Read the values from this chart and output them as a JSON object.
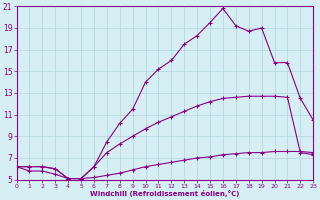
{
  "xlabel": "Windchill (Refroidissement éolien,°C)",
  "background_color": "#d6eff5",
  "grid_color": "#b0d4dc",
  "line_color": "#880088",
  "xlim": [
    0,
    23
  ],
  "ylim": [
    5,
    21
  ],
  "xticks": [
    0,
    1,
    2,
    3,
    4,
    5,
    6,
    7,
    8,
    9,
    10,
    11,
    12,
    13,
    14,
    15,
    16,
    17,
    18,
    19,
    20,
    21,
    22,
    23
  ],
  "yticks": [
    5,
    7,
    9,
    11,
    13,
    15,
    17,
    19,
    21
  ],
  "curve_upper_x": [
    0,
    1,
    2,
    3,
    4,
    5,
    6,
    7,
    8,
    9,
    10,
    11,
    12,
    13,
    14,
    15,
    16,
    17,
    18,
    19,
    20,
    21,
    22,
    23
  ],
  "curve_upper_y": [
    6.2,
    6.2,
    6.2,
    6.0,
    5.1,
    5.1,
    6.2,
    8.5,
    10.2,
    11.5,
    14.0,
    15.2,
    16.0,
    17.5,
    18.3,
    19.5,
    20.8,
    19.2,
    18.7,
    19.0,
    15.8,
    15.8,
    12.5,
    10.5
  ],
  "curve_mid_x": [
    0,
    1,
    2,
    3,
    4,
    5,
    6,
    7,
    8,
    9,
    10,
    11,
    12,
    13,
    14,
    15,
    16,
    17,
    18,
    19,
    20,
    21,
    22,
    23
  ],
  "curve_mid_y": [
    6.2,
    6.2,
    6.2,
    6.0,
    5.1,
    5.1,
    6.2,
    7.5,
    8.3,
    9.0,
    9.7,
    10.3,
    10.8,
    11.3,
    11.8,
    12.2,
    12.5,
    12.6,
    12.7,
    12.7,
    12.7,
    12.6,
    7.5,
    7.3
  ],
  "curve_lower_x": [
    0,
    1,
    2,
    3,
    4,
    5,
    6,
    7,
    8,
    9,
    10,
    11,
    12,
    13,
    14,
    15,
    16,
    17,
    18,
    19,
    20,
    21,
    22,
    23
  ],
  "curve_lower_y": [
    6.2,
    5.8,
    5.8,
    5.5,
    5.1,
    5.1,
    5.2,
    5.4,
    5.6,
    5.9,
    6.2,
    6.4,
    6.6,
    6.8,
    7.0,
    7.1,
    7.3,
    7.4,
    7.5,
    7.5,
    7.6,
    7.6,
    7.6,
    7.5
  ]
}
